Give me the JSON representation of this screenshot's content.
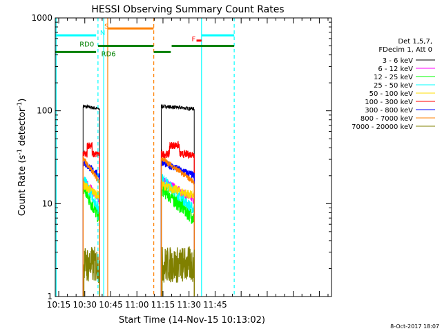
{
  "chart_data": {
    "type": "line",
    "title": "HESSI Observing Summary Count Rates",
    "xlabel": "Start Time (14-Nov-15 10:13:02)",
    "ylabel_main": "Count Rate (s",
    "ylabel_sup1": "-1",
    "ylabel_mid": " detector",
    "ylabel_sup2": "-1",
    "ylabel_end": ")",
    "yscale": "log",
    "ylim": [
      1,
      1000
    ],
    "xlim_minutes": [
      613,
      772
    ],
    "x_ticks": [
      {
        "t": 615,
        "label": "10:15"
      },
      {
        "t": 630,
        "label": "10:30"
      },
      {
        "t": 645,
        "label": "10:45"
      },
      {
        "t": 660,
        "label": "11:00"
      },
      {
        "t": 675,
        "label": "11:15"
      },
      {
        "t": 690,
        "label": "11:30"
      },
      {
        "t": 705,
        "label": "11:45"
      }
    ],
    "y_ticks": [
      {
        "v": 1,
        "label": "1"
      },
      {
        "v": 10,
        "label": "10"
      },
      {
        "v": 100,
        "label": "100"
      },
      {
        "v": 1000,
        "label": "1000"
      }
    ],
    "legend_header": [
      "Det 1,5,7,",
      "FDecim 1, Att 0"
    ],
    "series": [
      {
        "name": "3 - 6 keV",
        "color": "#000000",
        "a": 112,
        "b": 105,
        "bump": 0,
        "noise": 0.02
      },
      {
        "name": "6 - 12 keV",
        "color": "#ff00ff",
        "a": 18,
        "b": 11,
        "bump": 0,
        "noise": 0.05
      },
      {
        "name": "12 - 25 keV",
        "color": "#00ff00",
        "a": 15,
        "b": 7,
        "bump": 0,
        "noise": 0.09
      },
      {
        "name": "25 - 50 keV",
        "color": "#00ffff",
        "a": 19,
        "b": 8.5,
        "bump": 0,
        "noise": 0.06
      },
      {
        "name": "50 - 100 keV",
        "color": "#ffdd00",
        "a": 16,
        "b": 12,
        "bump": 0,
        "noise": 0.05
      },
      {
        "name": "100 - 300 keV",
        "color": "#ff0000",
        "a": 34,
        "b": 34,
        "bump": 1,
        "noise": 0.04
      },
      {
        "name": "300 - 800 keV",
        "color": "#0000ff",
        "a": 28,
        "b": 20,
        "bump": 0,
        "noise": 0.04
      },
      {
        "name": "800 - 7000 keV",
        "color": "#ff8000",
        "a": 31,
        "b": 17,
        "bump": 0,
        "noise": 0.03
      },
      {
        "name": "7000 - 20000 keV",
        "color": "#808000",
        "a": 2.2,
        "b": 2.2,
        "bump": 0,
        "noise": 0.2
      }
    ],
    "data_intervals": [
      [
        629,
        638.5
      ],
      [
        674,
        693
      ]
    ],
    "vlines": [
      {
        "t": 613.5,
        "color": "#00ffff",
        "dashed": false
      },
      {
        "t": 637.6,
        "color": "#00ffff",
        "dashed": true
      },
      {
        "t": 640.9,
        "color": "#00ffff",
        "dashed": false
      },
      {
        "t": 643.2,
        "color": "#ff8000",
        "dashed": false
      },
      {
        "t": 669.7,
        "color": "#ff8000",
        "dashed": true
      },
      {
        "t": 697.2,
        "color": "#00ffff",
        "dashed": false
      },
      {
        "t": 716.0,
        "color": "#00ffff",
        "dashed": true
      }
    ],
    "flags": [
      {
        "label": "N",
        "color": "#00ffff",
        "y": 650,
        "labelT": 638.8,
        "labelY": 700,
        "segments": [
          [
            613,
            636.5
          ]
        ]
      },
      {
        "label": "S",
        "color": "#ff8000",
        "y": 770,
        "labelT": 641.2,
        "labelY": 820,
        "segments": [
          [
            643.3,
            669.6
          ]
        ]
      },
      {
        "label": "RD0",
        "color": "#008000",
        "y": 500,
        "labelT": 627.0,
        "labelY": 525,
        "segments": [
          [
            637.6,
            669.6
          ],
          [
            680,
            716
          ]
        ]
      },
      {
        "label": "RD6",
        "color": "#008000",
        "y": 430,
        "labelT": 639.5,
        "labelY": 415,
        "segments": [
          [
            613,
            636.5
          ],
          [
            669.7,
            679.5
          ]
        ]
      },
      {
        "label": "F",
        "color": "#ff0000",
        "y": 570,
        "labelT": 691.5,
        "labelY": 600,
        "segments": [
          [
            694.3,
            697.2
          ]
        ]
      },
      {
        "label": "",
        "color": "#00ffff",
        "y": 650,
        "labelT": 0,
        "labelY": 0,
        "segments": [
          [
            697.2,
            716
          ]
        ]
      }
    ],
    "footer_date": "8-Oct-2017 18:07"
  }
}
